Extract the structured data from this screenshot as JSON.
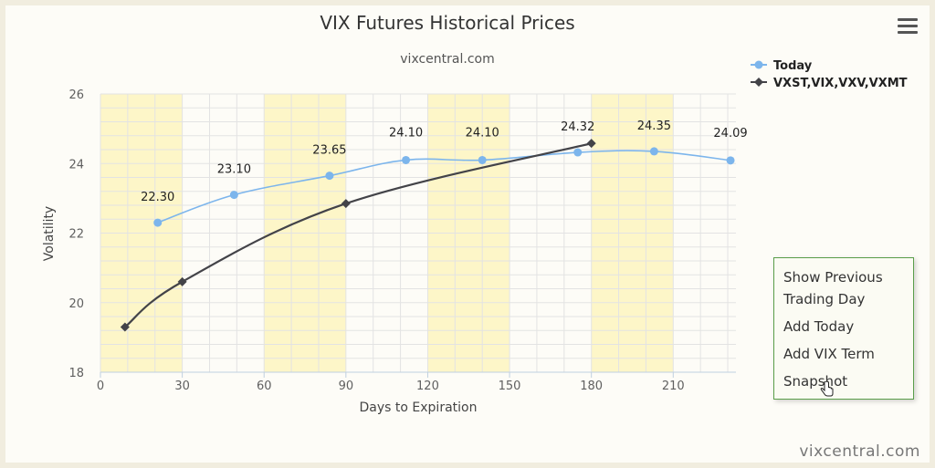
{
  "chart_data": {
    "type": "line",
    "title": "VIX Futures Historical Prices",
    "subtitle": "vixcentral.com",
    "xlabel": "Days to Expiration",
    "ylabel": "Volatility",
    "xlim": [
      0,
      233
    ],
    "ylim": [
      18,
      26
    ],
    "x_ticks": [
      0,
      30,
      60,
      90,
      120,
      150,
      180,
      210
    ],
    "y_ticks": [
      18,
      20,
      22,
      24,
      26
    ],
    "grid": true,
    "shaded_bands_x": [
      [
        0,
        30
      ],
      [
        60,
        90
      ],
      [
        120,
        150
      ],
      [
        180,
        210
      ]
    ],
    "legend_position": "top-right",
    "series": [
      {
        "name": "Today",
        "color": "#7cb5ec",
        "marker": "circle",
        "data": [
          {
            "x": 21,
            "y": 22.3,
            "label": "22.30"
          },
          {
            "x": 49,
            "y": 23.1,
            "label": "23.10"
          },
          {
            "x": 84,
            "y": 23.65,
            "label": "23.65"
          },
          {
            "x": 112,
            "y": 24.1,
            "label": "24.10"
          },
          {
            "x": 140,
            "y": 24.1,
            "label": "24.10"
          },
          {
            "x": 175,
            "y": 24.32,
            "label": "24.32"
          },
          {
            "x": 203,
            "y": 24.35,
            "label": "24.35"
          },
          {
            "x": 231,
            "y": 24.09,
            "label": "24.09"
          }
        ]
      },
      {
        "name": "VXST,VIX,VXV,VXMT",
        "color": "#434348",
        "marker": "diamond",
        "data": [
          {
            "x": 9,
            "y": 19.3
          },
          {
            "x": 30,
            "y": 20.6
          },
          {
            "x": 90,
            "y": 22.85
          },
          {
            "x": 180,
            "y": 24.58
          }
        ]
      }
    ]
  },
  "menu": {
    "items": [
      {
        "label_1": "Show Previous",
        "label_2": "Trading Day"
      },
      {
        "label_1": "Add Today"
      },
      {
        "label_1": "Add VIX Term"
      },
      {
        "label_1": "Snapshot"
      }
    ]
  },
  "watermark": "vixcentral.com",
  "icons": {
    "menu_button": "hamburger-icon",
    "cursor": "hand-pointer-icon"
  }
}
